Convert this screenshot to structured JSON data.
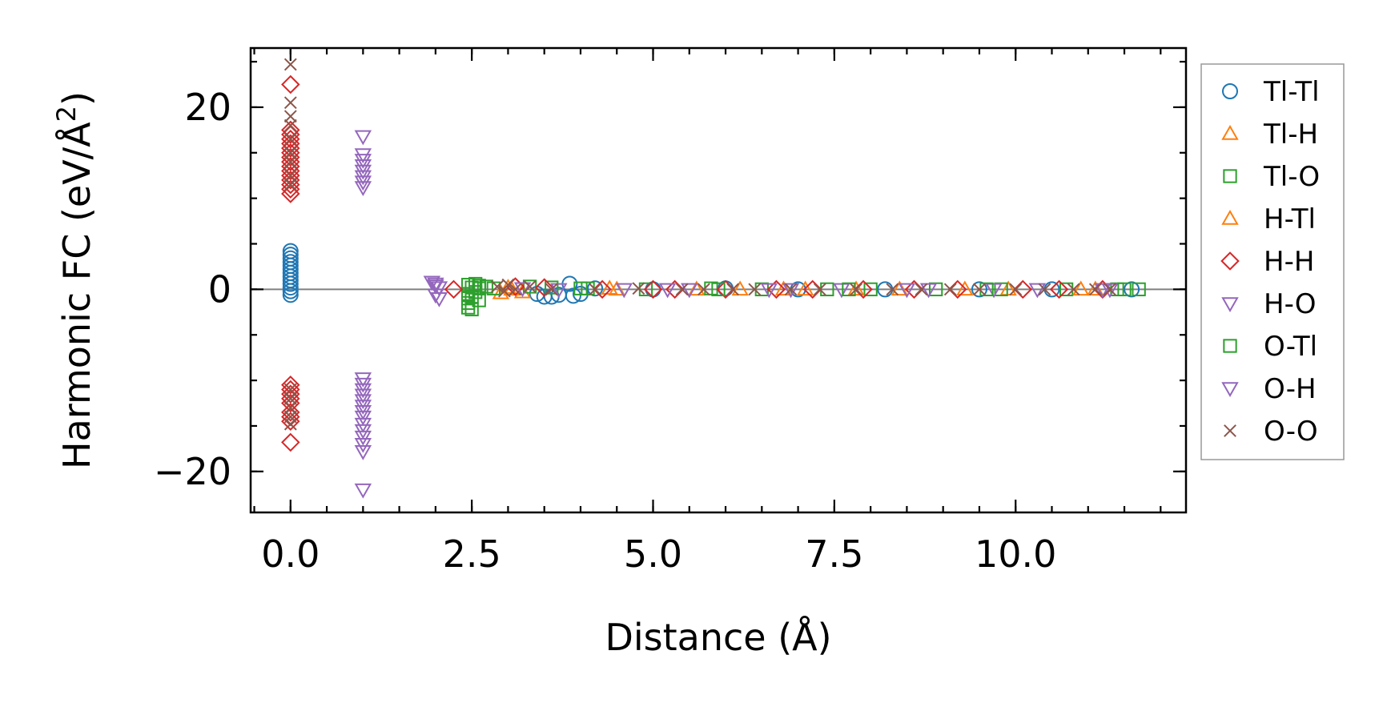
{
  "chart_data": {
    "type": "scatter",
    "title": "",
    "xlabel": "Distance (Å)",
    "ylabel": "Harmonic FC (eV/Å²)",
    "ylabel_parts": {
      "main": "Harmonic FC (eV/Å",
      "sup": "2",
      "tail": ")"
    },
    "xlim": [
      -0.55,
      12.35
    ],
    "ylim": [
      -24.5,
      26.5
    ],
    "xticks": [
      0.0,
      2.5,
      5.0,
      7.5,
      10.0
    ],
    "xtick_labels": [
      "0.0",
      "2.5",
      "5.0",
      "7.5",
      "10.0"
    ],
    "yticks": [
      -20,
      0,
      20
    ],
    "ytick_labels": [
      "−20",
      "0",
      "20"
    ],
    "x_minor_step": 0.5,
    "y_minor_step": 5,
    "zero_line": true,
    "grid": false,
    "legend_position": "outside-right",
    "series": [
      {
        "name": "Tl-Tl",
        "marker": "circle",
        "color": "#1f77b4",
        "points": [
          [
            0,
            4.2
          ],
          [
            0,
            3.8
          ],
          [
            0,
            3.4
          ],
          [
            0,
            3.0
          ],
          [
            0,
            2.6
          ],
          [
            0,
            2.2
          ],
          [
            0,
            1.8
          ],
          [
            0,
            1.4
          ],
          [
            0,
            1.0
          ],
          [
            0,
            0.6
          ],
          [
            0,
            0.2
          ],
          [
            0,
            -0.2
          ],
          [
            0,
            -0.6
          ],
          [
            3.4,
            -0.5
          ],
          [
            3.5,
            -0.8
          ],
          [
            3.6,
            -0.8
          ],
          [
            3.7,
            -0.6
          ],
          [
            3.85,
            0.6
          ],
          [
            3.9,
            -0.7
          ],
          [
            4.0,
            -0.5
          ],
          [
            4.2,
            0.1
          ],
          [
            5.0,
            0.0
          ],
          [
            6.0,
            0.1
          ],
          [
            7.0,
            0.0
          ],
          [
            8.2,
            0.0
          ],
          [
            9.5,
            0.0
          ],
          [
            10.5,
            0.0
          ],
          [
            11.6,
            0.0
          ]
        ]
      },
      {
        "name": "Tl-H",
        "marker": "triangle-up",
        "color": "#ff7f0e",
        "points": [
          [
            2.9,
            -0.4
          ],
          [
            3.0,
            0.2
          ],
          [
            3.2,
            -0.3
          ],
          [
            4.4,
            0.1
          ],
          [
            5.6,
            0.0
          ],
          [
            6.8,
            0.0
          ],
          [
            7.1,
            0.0
          ],
          [
            8.4,
            0.0
          ],
          [
            9.9,
            0.0
          ],
          [
            11.1,
            0.0
          ]
        ]
      },
      {
        "name": "Tl-O",
        "marker": "square",
        "color": "#2ca02c",
        "points": [
          [
            2.45,
            0.5
          ],
          [
            2.45,
            -0.5
          ],
          [
            2.45,
            -1.0
          ],
          [
            2.45,
            -1.5
          ],
          [
            2.45,
            -2.0
          ],
          [
            2.5,
            0.2
          ],
          [
            2.5,
            -0.8
          ],
          [
            2.55,
            0.6
          ],
          [
            2.55,
            -0.3
          ],
          [
            2.6,
            0.1
          ],
          [
            2.6,
            -1.2
          ],
          [
            2.7,
            0.3
          ],
          [
            2.8,
            0.1
          ],
          [
            3.3,
            0.3
          ],
          [
            3.6,
            0.2
          ],
          [
            4.1,
            0.1
          ],
          [
            4.9,
            0.0
          ],
          [
            5.8,
            0.1
          ],
          [
            6.5,
            0.0
          ],
          [
            7.4,
            0.0
          ],
          [
            8.0,
            0.0
          ],
          [
            8.9,
            0.0
          ],
          [
            9.8,
            0.0
          ],
          [
            10.7,
            0.0
          ],
          [
            11.4,
            0.0
          ],
          [
            11.7,
            0.0
          ]
        ]
      },
      {
        "name": "H-Tl",
        "marker": "triangle-up",
        "color": "#ff7f0e",
        "points": [
          [
            3.05,
            0.0
          ],
          [
            4.5,
            0.0
          ],
          [
            6.2,
            0.0
          ],
          [
            7.8,
            0.0
          ],
          [
            9.3,
            0.0
          ],
          [
            10.9,
            0.0
          ]
        ]
      },
      {
        "name": "H-H",
        "marker": "diamond",
        "color": "#d62728",
        "points": [
          [
            0,
            22.5
          ],
          [
            0,
            17.5
          ],
          [
            0,
            17.0
          ],
          [
            0,
            16.5
          ],
          [
            0,
            16.0
          ],
          [
            0,
            15.5
          ],
          [
            0,
            15.0
          ],
          [
            0,
            14.5
          ],
          [
            0,
            14.0
          ],
          [
            0,
            13.5
          ],
          [
            0,
            13.0
          ],
          [
            0,
            12.5
          ],
          [
            0,
            12.0
          ],
          [
            0,
            11.5
          ],
          [
            0,
            11.0
          ],
          [
            0,
            10.5
          ],
          [
            0,
            -10.5
          ],
          [
            0,
            -11.0
          ],
          [
            0,
            -11.5
          ],
          [
            0,
            -12.0
          ],
          [
            0,
            -12.5
          ],
          [
            0,
            -13.5
          ],
          [
            0,
            -14.0
          ],
          [
            0,
            -14.5
          ],
          [
            0,
            -16.8
          ],
          [
            2.25,
            0.0
          ],
          [
            3.1,
            0.3
          ],
          [
            3.5,
            0.2
          ],
          [
            4.3,
            0.0
          ],
          [
            5.0,
            0.0
          ],
          [
            5.3,
            0.0
          ],
          [
            6.0,
            0.0
          ],
          [
            6.7,
            0.0
          ],
          [
            7.2,
            0.0
          ],
          [
            7.9,
            0.0
          ],
          [
            8.6,
            0.0
          ],
          [
            9.2,
            0.0
          ],
          [
            10.1,
            0.0
          ],
          [
            10.6,
            0.0
          ],
          [
            11.2,
            0.0
          ]
        ]
      },
      {
        "name": "H-O",
        "marker": "triangle-down",
        "color": "#9467bd",
        "points": [
          [
            1.0,
            16.8
          ],
          [
            1.0,
            14.8
          ],
          [
            1.0,
            14.2
          ],
          [
            1.0,
            13.6
          ],
          [
            1.0,
            13.0
          ],
          [
            1.0,
            12.4
          ],
          [
            1.0,
            11.8
          ],
          [
            1.0,
            11.2
          ],
          [
            1.0,
            -9.8
          ],
          [
            1.0,
            -10.4
          ],
          [
            1.0,
            -11.0
          ],
          [
            1.0,
            -11.6
          ],
          [
            1.0,
            -12.2
          ],
          [
            1.0,
            -12.8
          ],
          [
            1.0,
            -13.4
          ],
          [
            1.0,
            -14.0
          ],
          [
            1.0,
            -14.8
          ],
          [
            1.0,
            -15.5
          ],
          [
            1.0,
            -16.2
          ],
          [
            1.0,
            -17.0
          ],
          [
            1.0,
            -17.8
          ],
          [
            1.0,
            -22.0
          ],
          [
            1.95,
            0.8
          ],
          [
            2.0,
            0.4
          ],
          [
            2.0,
            -0.6
          ],
          [
            2.05,
            0.2
          ],
          [
            2.05,
            -1.0
          ],
          [
            3.2,
            0.1
          ],
          [
            4.6,
            0.0
          ],
          [
            5.5,
            0.0
          ],
          [
            6.6,
            0.0
          ],
          [
            7.6,
            0.0
          ],
          [
            8.8,
            0.0
          ],
          [
            9.7,
            0.0
          ],
          [
            11.3,
            0.0
          ]
        ]
      },
      {
        "name": "O-Tl",
        "marker": "square",
        "color": "#2ca02c",
        "points": [
          [
            2.5,
            -2.2
          ],
          [
            2.6,
            0.4
          ],
          [
            4.0,
            0.1
          ],
          [
            5.9,
            0.0
          ],
          [
            7.7,
            0.0
          ],
          [
            9.6,
            0.0
          ],
          [
            11.5,
            0.0
          ]
        ]
      },
      {
        "name": "O-H",
        "marker": "triangle-down",
        "color": "#9467bd",
        "points": [
          [
            2.0,
            0.6
          ],
          [
            3.7,
            0.0
          ],
          [
            5.2,
            0.0
          ],
          [
            6.9,
            0.0
          ],
          [
            8.5,
            0.0
          ],
          [
            10.3,
            0.0
          ],
          [
            11.2,
            0.0
          ]
        ]
      },
      {
        "name": "O-O",
        "marker": "x",
        "color": "#8c564b",
        "points": [
          [
            0,
            24.7
          ],
          [
            0,
            20.5
          ],
          [
            0,
            19.0
          ],
          [
            0,
            18.0
          ],
          [
            0,
            16.5
          ],
          [
            0,
            15.0
          ],
          [
            0,
            14.0
          ],
          [
            0,
            12.5
          ],
          [
            0,
            11.5
          ],
          [
            0,
            -11.0
          ],
          [
            0,
            -12.0
          ],
          [
            0,
            -13.0
          ],
          [
            0,
            -14.0
          ],
          [
            0,
            -14.8
          ],
          [
            2.85,
            0.3
          ],
          [
            2.95,
            -0.2
          ],
          [
            3.0,
            0.5
          ],
          [
            3.1,
            0.0
          ],
          [
            3.3,
            0.3
          ],
          [
            3.6,
            0.0
          ],
          [
            4.2,
            0.0
          ],
          [
            4.8,
            0.1
          ],
          [
            5.4,
            0.0
          ],
          [
            5.7,
            0.0
          ],
          [
            6.1,
            0.0
          ],
          [
            6.4,
            0.0
          ],
          [
            6.9,
            0.0
          ],
          [
            7.3,
            0.0
          ],
          [
            7.8,
            0.0
          ],
          [
            8.3,
            0.0
          ],
          [
            8.7,
            0.0
          ],
          [
            9.1,
            0.0
          ],
          [
            9.5,
            0.0
          ],
          [
            10.0,
            0.0
          ],
          [
            10.4,
            0.0
          ],
          [
            10.8,
            0.0
          ],
          [
            11.1,
            0.0
          ],
          [
            11.3,
            0.0
          ]
        ]
      }
    ]
  }
}
